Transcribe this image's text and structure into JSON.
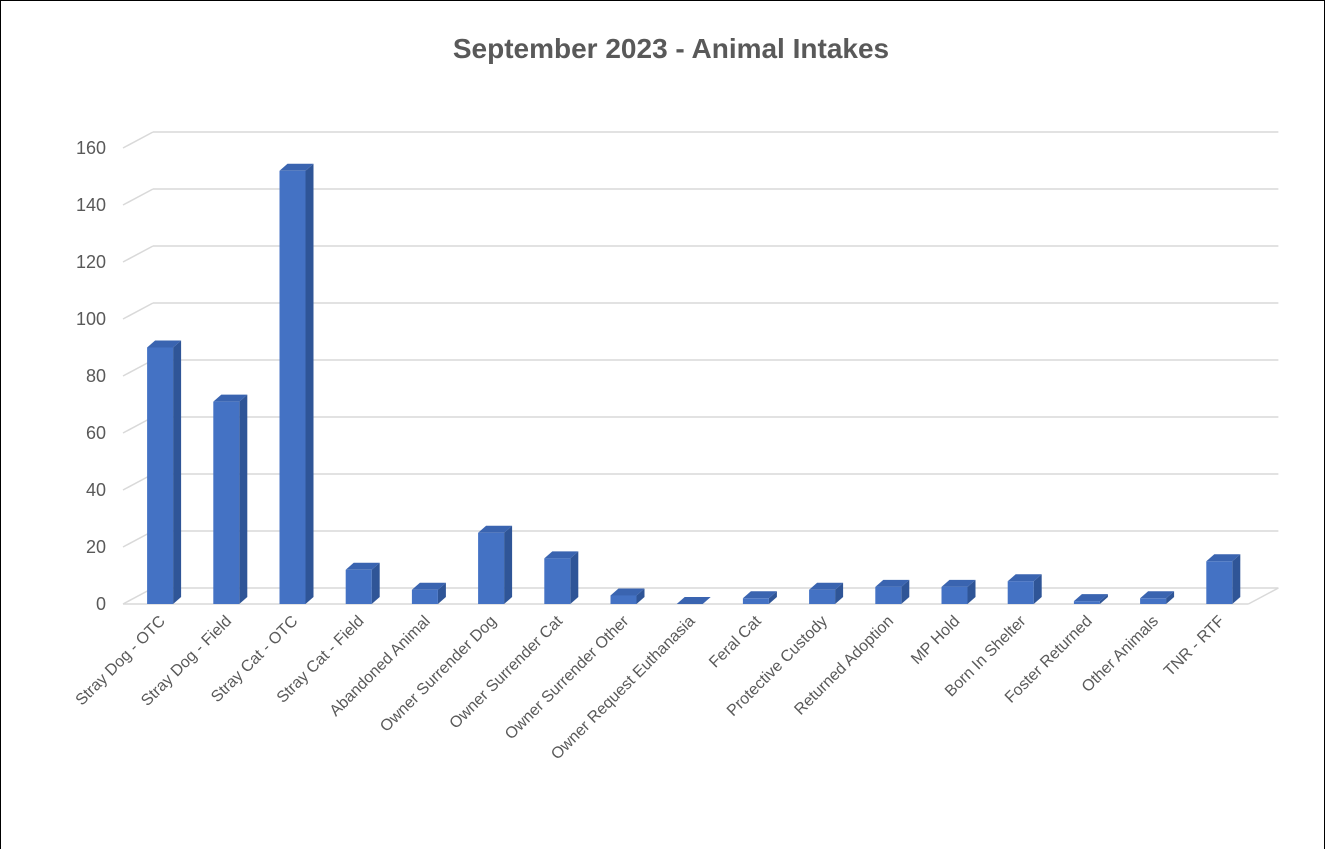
{
  "chart_data": {
    "type": "bar",
    "title": "September 2023 - Animal Intakes",
    "categories": [
      "Stray Dog - OTC",
      "Stray Dog - Field",
      "Stray Cat - OTC",
      "Stray Cat - Field",
      "Abandoned Animal",
      "Owner Surrender Dog",
      "Owner Surrender Cat",
      "Owner Surrender Other",
      "Owner Request Euthanasia",
      "Feral Cat",
      "Protective Custody",
      "Returned Adoption",
      "MP Hold",
      "Born In Shelter",
      "Foster Returned",
      "Other Animals",
      "TNR - RTF"
    ],
    "values": [
      90,
      71,
      152,
      12,
      5,
      25,
      16,
      3,
      0,
      2,
      5,
      6,
      6,
      8,
      1,
      2,
      15
    ],
    "ylim": [
      0,
      160
    ],
    "yticks": [
      "0",
      "20",
      "40",
      "60",
      "80",
      "100",
      "120",
      "140",
      "160"
    ],
    "grid": true,
    "bar_color": "#4472C4"
  }
}
